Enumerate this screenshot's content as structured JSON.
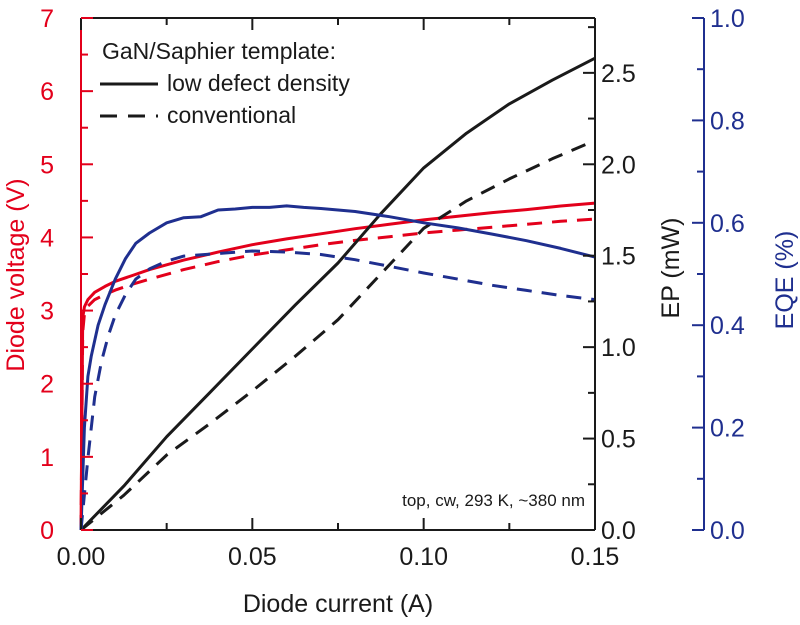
{
  "chart_data": {
    "type": "line",
    "title": "",
    "xlabel": "Diode current (A)",
    "xlim": [
      0,
      0.15
    ],
    "xticks": [
      0.0,
      0.05,
      0.1,
      0.15
    ],
    "xtick_labels": [
      "0.00",
      "0.05",
      "0.10",
      "0.15"
    ],
    "x_minor_step": 0.025,
    "axes": {
      "voltage": {
        "label": "Diode voltage (V)",
        "side": "left",
        "color": "#e3001b",
        "lim": [
          0,
          7
        ],
        "ticks": [
          0,
          1,
          2,
          3,
          4,
          5,
          6,
          7
        ],
        "tick_labels": [
          "0",
          "1",
          "2",
          "3",
          "4",
          "5",
          "6",
          "7"
        ],
        "minor_step": 0.5
      },
      "ep": {
        "label": "EP (mW)",
        "side": "right",
        "color": "#1a1a1a",
        "lim": [
          0,
          2.8
        ],
        "ticks": [
          0.0,
          0.5,
          1.0,
          1.5,
          2.0,
          2.5
        ],
        "tick_labels": [
          "0.0",
          "0.5",
          "1.0",
          "1.5",
          "2.0",
          "2.5"
        ],
        "minor_step": 0.25
      },
      "eqe": {
        "label": "EQE (%)",
        "side": "right-offset",
        "color": "#1f2f8f",
        "lim": [
          0,
          1.0
        ],
        "ticks": [
          0.0,
          0.2,
          0.4,
          0.6,
          0.8,
          1.0
        ],
        "tick_labels": [
          "0.0",
          "0.2",
          "0.4",
          "0.6",
          "0.8",
          "1.0"
        ],
        "minor_step": 0.1
      }
    },
    "series": [
      {
        "name": "Voltage, low defect density",
        "axis": "voltage",
        "style": "solid",
        "x": [
          0,
          0.0005,
          0.001,
          0.002,
          0.004,
          0.007,
          0.01,
          0.015,
          0.02,
          0.03,
          0.04,
          0.05,
          0.06,
          0.07,
          0.08,
          0.09,
          0.1,
          0.11,
          0.12,
          0.13,
          0.14,
          0.15
        ],
        "y": [
          0,
          2.9,
          3.05,
          3.15,
          3.25,
          3.33,
          3.4,
          3.48,
          3.56,
          3.69,
          3.8,
          3.9,
          3.98,
          4.05,
          4.12,
          4.18,
          4.24,
          4.29,
          4.34,
          4.38,
          4.43,
          4.47
        ]
      },
      {
        "name": "Voltage, conventional",
        "axis": "voltage",
        "style": "dashed",
        "x": [
          0,
          0.0005,
          0.001,
          0.002,
          0.004,
          0.007,
          0.01,
          0.015,
          0.02,
          0.03,
          0.04,
          0.05,
          0.06,
          0.07,
          0.08,
          0.09,
          0.1,
          0.11,
          0.12,
          0.13,
          0.14,
          0.15
        ],
        "y": [
          0,
          2.7,
          2.95,
          3.06,
          3.15,
          3.22,
          3.28,
          3.36,
          3.43,
          3.56,
          3.67,
          3.76,
          3.83,
          3.9,
          3.96,
          4.01,
          4.06,
          4.1,
          4.14,
          4.18,
          4.22,
          4.25
        ]
      },
      {
        "name": "EP, low defect density",
        "axis": "ep",
        "style": "solid",
        "x": [
          0,
          0.0125,
          0.025,
          0.0375,
          0.05,
          0.0625,
          0.075,
          0.0875,
          0.1,
          0.1125,
          0.125,
          0.1375,
          0.15
        ],
        "y": [
          0,
          0.24,
          0.51,
          0.75,
          0.99,
          1.23,
          1.46,
          1.73,
          1.98,
          2.17,
          2.33,
          2.46,
          2.58
        ]
      },
      {
        "name": "EP, conventional",
        "axis": "ep",
        "style": "dashed",
        "x": [
          0,
          0.0125,
          0.025,
          0.0375,
          0.05,
          0.0625,
          0.075,
          0.0875,
          0.1,
          0.1125,
          0.125,
          0.1375,
          0.15
        ],
        "y": [
          0,
          0.19,
          0.41,
          0.58,
          0.76,
          0.95,
          1.15,
          1.4,
          1.65,
          1.8,
          1.92,
          2.03,
          2.13
        ]
      },
      {
        "name": "EQE, low defect density",
        "axis": "eqe",
        "style": "solid",
        "x": [
          0,
          0.001,
          0.002,
          0.003,
          0.005,
          0.007,
          0.01,
          0.013,
          0.016,
          0.02,
          0.025,
          0.03,
          0.035,
          0.04,
          0.045,
          0.05,
          0.055,
          0.06,
          0.065,
          0.07,
          0.08,
          0.09,
          0.1,
          0.11,
          0.12,
          0.13,
          0.14,
          0.15
        ],
        "y": [
          0,
          0.2,
          0.3,
          0.34,
          0.4,
          0.44,
          0.49,
          0.53,
          0.56,
          0.58,
          0.6,
          0.61,
          0.612,
          0.625,
          0.627,
          0.63,
          0.63,
          0.633,
          0.63,
          0.628,
          0.622,
          0.612,
          0.6,
          0.59,
          0.578,
          0.565,
          0.55,
          0.533
        ]
      },
      {
        "name": "EQE, conventional",
        "axis": "eqe",
        "style": "dashed",
        "x": [
          0,
          0.002,
          0.004,
          0.006,
          0.008,
          0.01,
          0.013,
          0.016,
          0.02,
          0.025,
          0.03,
          0.04,
          0.05,
          0.06,
          0.07,
          0.08,
          0.09,
          0.1,
          0.11,
          0.12,
          0.13,
          0.14,
          0.15
        ],
        "y": [
          0,
          0.14,
          0.26,
          0.33,
          0.38,
          0.42,
          0.46,
          0.49,
          0.51,
          0.525,
          0.535,
          0.54,
          0.545,
          0.543,
          0.538,
          0.528,
          0.515,
          0.502,
          0.49,
          0.478,
          0.468,
          0.458,
          0.45
        ]
      }
    ],
    "legend": {
      "position": "top-left",
      "title": "GaN/Saphier template:",
      "entries": [
        {
          "label": "low defect density",
          "style": "solid"
        },
        {
          "label": "conventional",
          "style": "dashed"
        }
      ]
    },
    "annotation": "top, cw, 293 K, ~380 nm",
    "annotation_position": "bottom-right"
  }
}
